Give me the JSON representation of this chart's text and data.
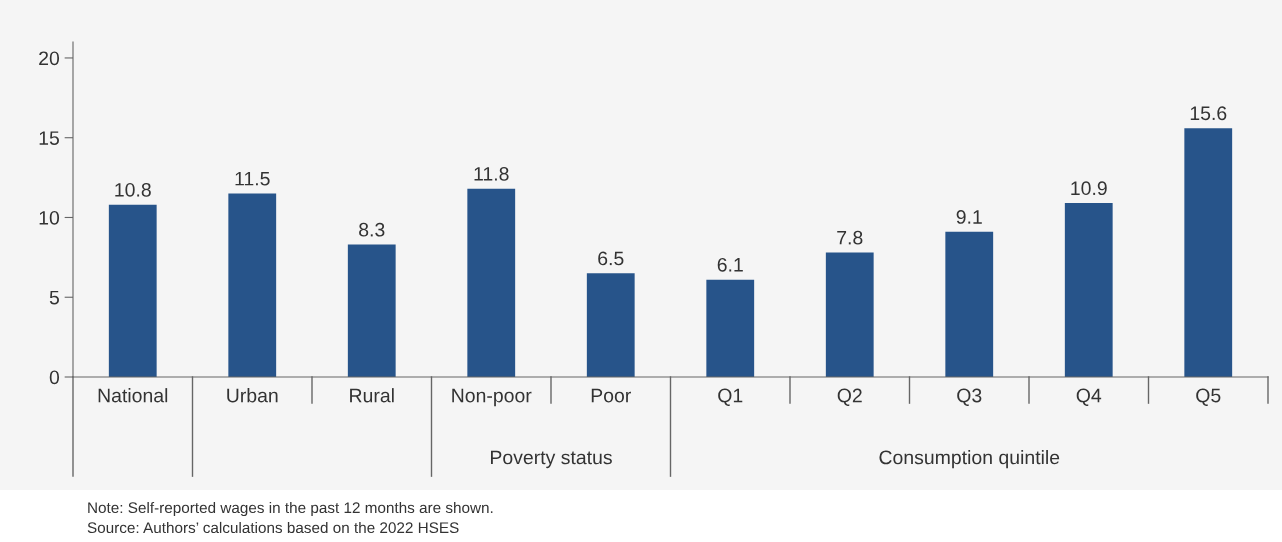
{
  "chart_data": {
    "type": "bar",
    "categories": [
      "National",
      "Urban",
      "Rural",
      "Non-poor",
      "Poor",
      "Q1",
      "Q2",
      "Q3",
      "Q4",
      "Q5"
    ],
    "values": [
      10.8,
      11.5,
      8.3,
      11.8,
      6.5,
      6.1,
      7.8,
      9.1,
      10.9,
      15.6
    ],
    "color": "#27548a",
    "ylim": [
      0,
      21
    ],
    "yticks": [
      0,
      5,
      10,
      15,
      20
    ],
    "data_labels": true,
    "grid": false,
    "legend": false,
    "annotations": [
      "Poverty status",
      "Consumption quintile",
      "Note: Self-reported wages in the past 12 months are shown.",
      "Source: Authors’ calculations based on the 2022 HSES"
    ]
  }
}
